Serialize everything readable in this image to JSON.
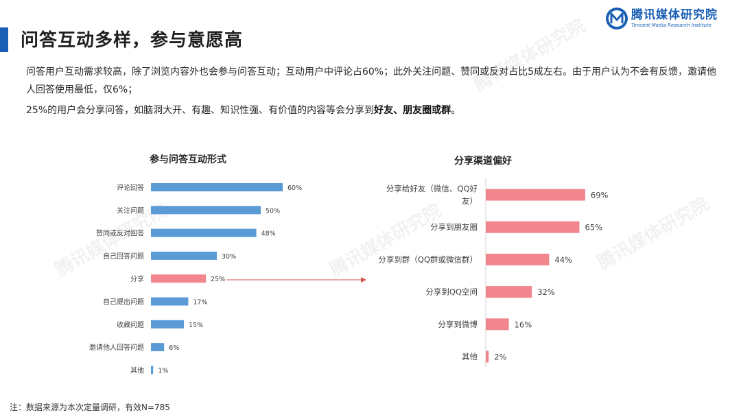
{
  "header": {
    "title": "问答互动多样，参与意愿高",
    "logo_cn": "腾讯媒体研究院",
    "logo_en": "Tencent Media Research Institute",
    "logo_mark_icon": "tencent-media-m-icon",
    "accent_color": "#1a5fb4"
  },
  "description": {
    "line1": "问答用户互动需求较高，除了浏览内容外也会参与问答互动；互动用户中评论占60%；此外关注问题、赞同或反对占比5成左右。由于用户认为不会有反馈，邀请他人回答使用最低，仅6%；",
    "line2_prefix": "25%的用户会分享问答，如脑洞大开、有趣、知识性强、有价值的内容等会分享到",
    "line2_bold": "好友、朋友圈或群",
    "line2_suffix": "。"
  },
  "watermark": "腾讯媒体研究院",
  "chart_data": [
    {
      "type": "bar",
      "orientation": "horizontal",
      "title": "参与问答互动形式",
      "categories": [
        "评论回答",
        "关注问题",
        "赞同或反对回答",
        "自己回答问题",
        "分享",
        "自己提出问题",
        "收藏问题",
        "邀请他人回答问题",
        "其他"
      ],
      "values": [
        60,
        50,
        48,
        30,
        25,
        17,
        15,
        6,
        1
      ],
      "value_labels": [
        "60%",
        "50%",
        "48%",
        "30%",
        "25%",
        "17%",
        "15%",
        "6%",
        "1%"
      ],
      "bar_colors": [
        "#5b9bd5",
        "#5b9bd5",
        "#5b9bd5",
        "#5b9bd5",
        "#f1868e",
        "#5b9bd5",
        "#5b9bd5",
        "#5b9bd5",
        "#5b9bd5"
      ],
      "grid": false,
      "legend": "none"
    },
    {
      "type": "bar",
      "orientation": "horizontal",
      "title": "分享渠道偏好",
      "categories": [
        [
          "分享给好友（微信、QQ好",
          "友）"
        ],
        [
          "分享到朋友圈"
        ],
        [
          "分享到群（QQ群或微信群）"
        ],
        [
          "分享到QQ空间"
        ],
        [
          "分享到微博"
        ],
        [
          "其他"
        ]
      ],
      "values": [
        69,
        65,
        44,
        32,
        16,
        2
      ],
      "value_labels": [
        "69%",
        "65%",
        "44%",
        "32%",
        "16%",
        "2%"
      ],
      "bar_color": "#f1868e",
      "grid": false,
      "legend": "none"
    }
  ],
  "arrow_color": "#d9534f",
  "footnote": "注：数据来源为本次定量调研，有效N=785"
}
